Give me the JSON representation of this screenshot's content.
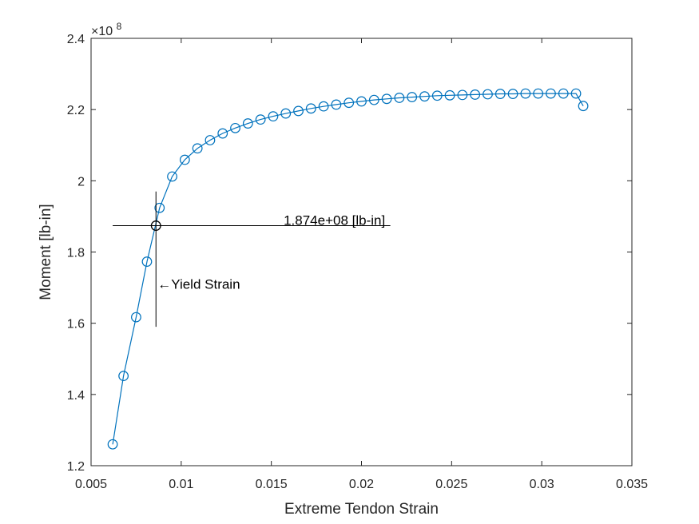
{
  "chart_data": {
    "type": "line",
    "xlabel": "Extreme Tendon Strain",
    "ylabel": "Moment [lb-in]",
    "y_exponent_label": "×10",
    "y_exponent_power": "8",
    "xlim": [
      0.005,
      0.035
    ],
    "ylim": [
      1.2,
      2.4
    ],
    "y_scale_note": "values in units of 1e8 lb-in",
    "x_ticks": [
      0.005,
      0.01,
      0.015,
      0.02,
      0.025,
      0.03,
      0.035
    ],
    "x_tick_labels": [
      "0.005",
      "0.01",
      "0.015",
      "0.02",
      "0.025",
      "0.03",
      "0.035"
    ],
    "y_ticks": [
      1.2,
      1.4,
      1.6,
      1.8,
      2.0,
      2.2,
      2.4
    ],
    "y_tick_labels": [
      "1.2",
      "1.4",
      "1.6",
      "1.8",
      "2",
      "2.2",
      "2.4"
    ],
    "grid": false,
    "series": [
      {
        "color": "#0072BD",
        "marker": "circle",
        "x": [
          0.0062,
          0.0068,
          0.0075,
          0.0081,
          0.0088,
          0.0095,
          0.0102,
          0.0109,
          0.0116,
          0.0123,
          0.013,
          0.0137,
          0.0144,
          0.0151,
          0.0158,
          0.0165,
          0.0172,
          0.0179,
          0.0186,
          0.0193,
          0.02,
          0.0207,
          0.0214,
          0.0221,
          0.0228,
          0.0235,
          0.0242,
          0.0249,
          0.0256,
          0.0263,
          0.027,
          0.0277,
          0.0284,
          0.0291,
          0.0298,
          0.0305,
          0.0312,
          0.0319,
          0.0323
        ],
        "y": [
          1.26,
          1.452,
          1.617,
          1.773,
          1.924,
          2.012,
          2.059,
          2.091,
          2.114,
          2.133,
          2.148,
          2.161,
          2.172,
          2.181,
          2.189,
          2.196,
          2.203,
          2.209,
          2.214,
          2.219,
          2.223,
          2.227,
          2.23,
          2.233,
          2.235,
          2.237,
          2.239,
          2.24,
          2.241,
          2.242,
          2.243,
          2.244,
          2.244,
          2.245,
          2.245,
          2.245,
          2.245,
          2.245,
          2.21
        ]
      }
    ],
    "yield_point": {
      "x": 0.0086,
      "y": 1.874,
      "color": "#000000"
    },
    "annotations": {
      "moment_label": "1.874e+08 [lb-in]",
      "yield_label": "←Yield Strain"
    },
    "crosshair": {
      "h_x_range": [
        0.0062,
        0.0216
      ],
      "v_y_range": [
        1.59,
        1.97
      ],
      "yield_label_at": {
        "x": 0.0086,
        "y": 1.71
      },
      "moment_label_at": {
        "x": 0.0185,
        "y": 1.89
      }
    }
  }
}
